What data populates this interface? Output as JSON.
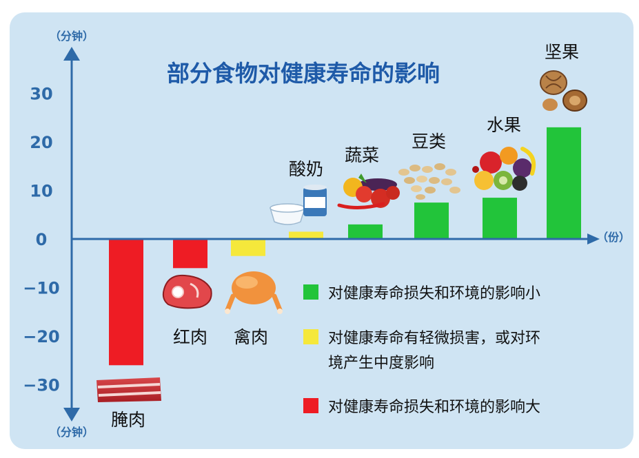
{
  "chart_data": {
    "type": "bar",
    "title": "部分食物对健康寿命的影响",
    "y_unit": "（分钟）",
    "x_unit": "（份）",
    "ylim": [
      -35,
      35
    ],
    "yticks": [
      30,
      20,
      10,
      0,
      -10,
      -20,
      -30
    ],
    "categories": [
      "腌肉",
      "红肉",
      "禽肉",
      "酸奶",
      "蔬菜",
      "豆类",
      "水果",
      "坚果"
    ],
    "values": [
      -26,
      -6,
      -3.5,
      1.5,
      3,
      7.5,
      8.5,
      23
    ],
    "impact": [
      "large",
      "large",
      "moderate",
      "moderate",
      "small",
      "small",
      "small",
      "small"
    ],
    "legend": [
      {
        "key": "small",
        "color": "#22c43a",
        "label": "对健康寿命损失和环境的影响小"
      },
      {
        "key": "moderate",
        "color": "#f5e83b",
        "label": "对健康寿命有轻微损害，或对环境产生中度影响"
      },
      {
        "key": "large",
        "color": "#ee1c24",
        "label": "对健康寿命损失和环境的影响大"
      }
    ]
  },
  "colors": {
    "panel": "#cfe4f3",
    "axis": "#2e6aa8",
    "title": "#1e5aa8",
    "small": "#22c43a",
    "moderate": "#f5e83b",
    "large": "#ee1c24"
  }
}
